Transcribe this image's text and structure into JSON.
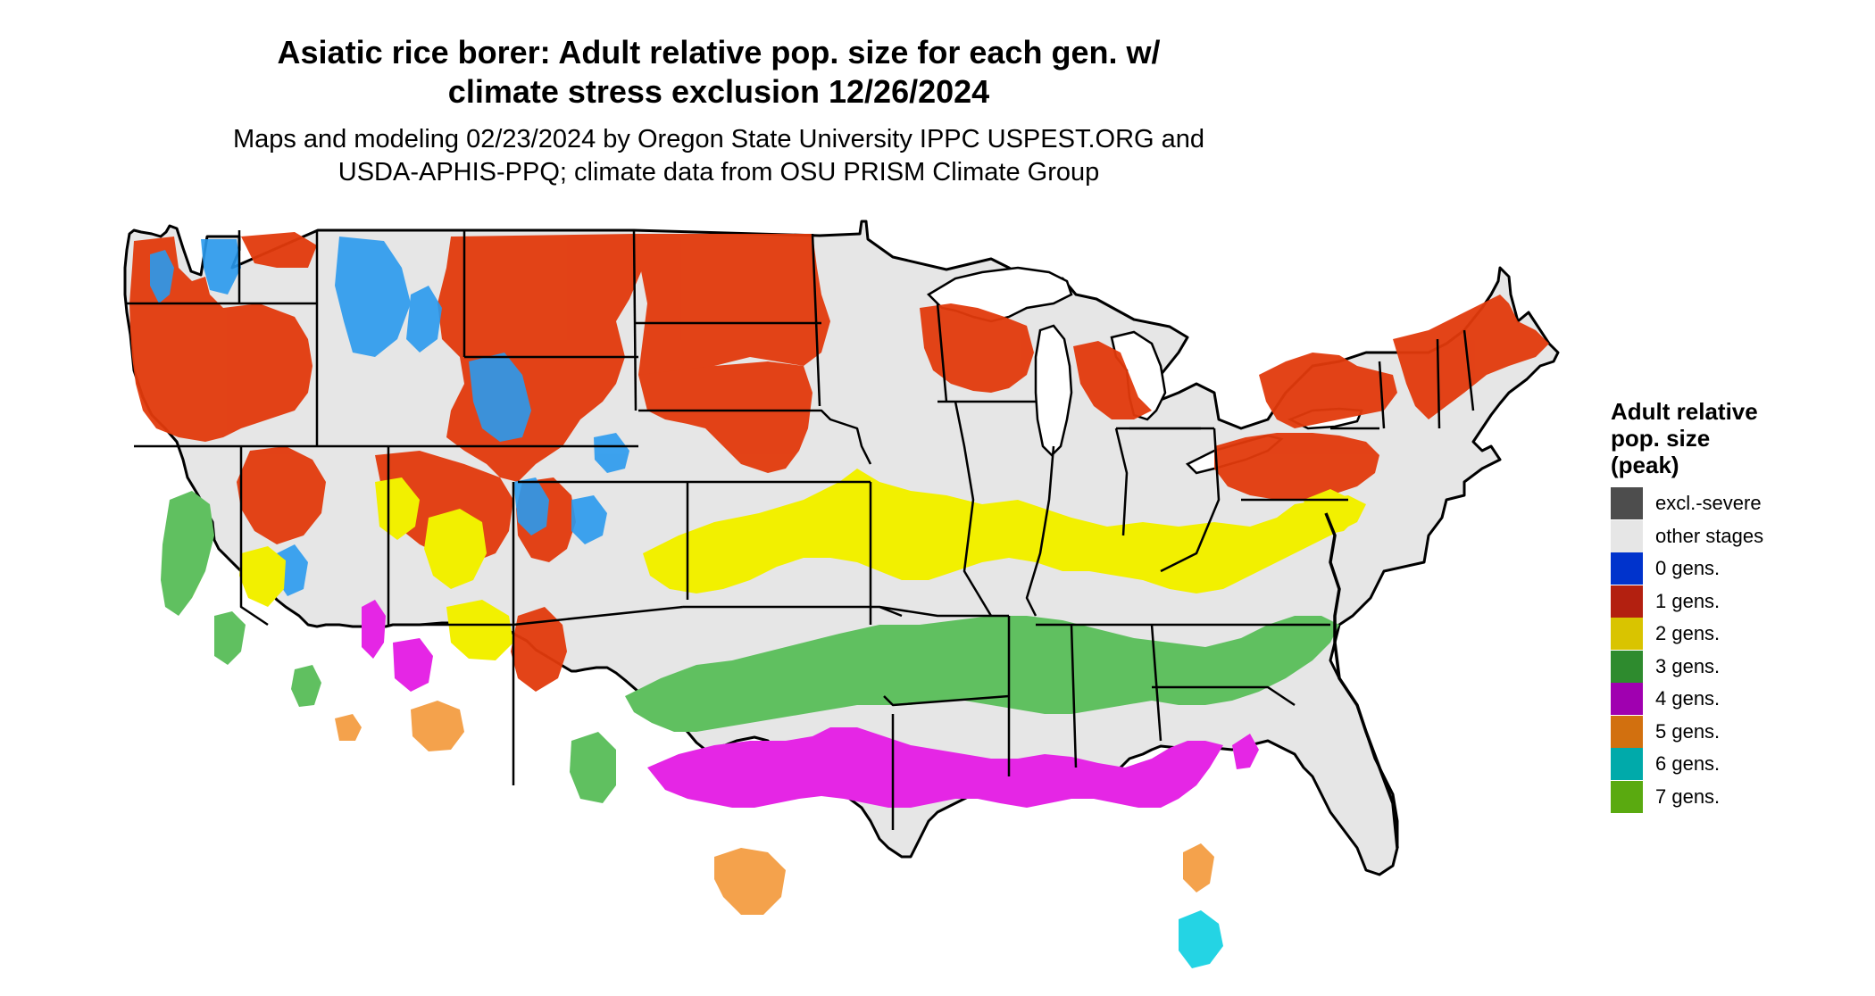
{
  "title": {
    "line1": "Asiatic rice borer: Adult relative pop. size for each gen. w/",
    "line2": "climate stress exclusion 12/26/2024"
  },
  "subtitle": {
    "line1": "Maps and modeling 02/23/2024 by Oregon State University IPPC USPEST.ORG and",
    "line2": "USDA-APHIS-PPQ; climate data from OSU PRISM Climate Group"
  },
  "legend": {
    "title_line1": "Adult relative",
    "title_line2": "pop. size",
    "title_line3": "(peak)",
    "items": [
      {
        "label": "excl.-severe",
        "color": "#4d4d4d"
      },
      {
        "label": "other stages",
        "color": "#e6e6e6"
      },
      {
        "label": "0 gens.",
        "color": "#0033cc"
      },
      {
        "label": "1 gens.",
        "color": "#b32010"
      },
      {
        "label": "2 gens.",
        "color": "#d9c400"
      },
      {
        "label": "3 gens.",
        "color": "#2e8b2e"
      },
      {
        "label": "4 gens.",
        "color": "#a000b0"
      },
      {
        "label": "5 gens.",
        "color": "#d2700f"
      },
      {
        "label": "6 gens.",
        "color": "#00aaaa"
      },
      {
        "label": "7 gens.",
        "color": "#5aaa10"
      }
    ]
  },
  "map_colors": {
    "background_land": "#e6e6e6",
    "gen1_dark": "#cc3300",
    "gen1_bright": "#e83c0a",
    "gen0_blue": "#1e90e8",
    "gen2_yellow": "#f0f000",
    "gen3_green": "#5cc05c",
    "gen4_magenta": "#e020e0",
    "gen5_orange": "#f0a040",
    "gen6_cyan": "#20d8e8",
    "border": "#000000"
  }
}
